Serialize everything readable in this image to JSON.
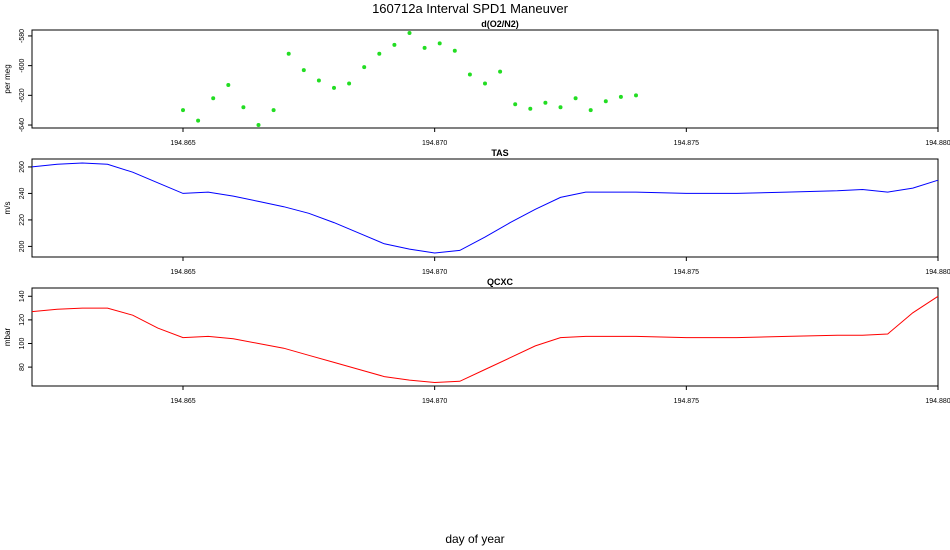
{
  "figure": {
    "title": "160712a   Interval SPD1 Maneuver",
    "xlabel": "day of year"
  },
  "chart_data": [
    {
      "type": "scatter",
      "title": "d(O2/N2)",
      "ylabel": "per meg",
      "xlim": [
        194.862,
        194.88
      ],
      "ylim": [
        -642,
        -576
      ],
      "xticks": [
        194.865,
        194.87,
        194.875,
        194.88
      ],
      "yticks": [
        -640,
        -620,
        -600,
        -580
      ],
      "color": "#22dd22",
      "x": [
        194.865,
        194.8653,
        194.8656,
        194.8659,
        194.8662,
        194.8665,
        194.8668,
        194.8671,
        194.8674,
        194.8677,
        194.868,
        194.8683,
        194.8686,
        194.8689,
        194.8692,
        194.8695,
        194.8698,
        194.8701,
        194.8704,
        194.8707,
        194.871,
        194.8713,
        194.8716,
        194.8719,
        194.8722,
        194.8725,
        194.8728,
        194.8731,
        194.8734,
        194.8737,
        194.874
      ],
      "y": [
        -630,
        -637,
        -622,
        -613,
        -628,
        -640,
        -630,
        -592,
        -603,
        -610,
        -615,
        -612,
        -601,
        -592,
        -586,
        -578,
        -588,
        -585,
        -590,
        -606,
        -612,
        -604,
        -626,
        -629,
        -625,
        -628,
        -622,
        -630,
        -624,
        -621,
        -620
      ]
    },
    {
      "type": "line",
      "title": "TAS",
      "ylabel": "m/s",
      "xlim": [
        194.862,
        194.88
      ],
      "ylim": [
        192,
        266
      ],
      "xticks": [
        194.865,
        194.87,
        194.875,
        194.88
      ],
      "yticks": [
        200,
        220,
        240,
        260
      ],
      "color": "#0000ff",
      "x": [
        194.862,
        194.8625,
        194.863,
        194.8635,
        194.864,
        194.8645,
        194.865,
        194.8655,
        194.866,
        194.8665,
        194.867,
        194.8675,
        194.868,
        194.8685,
        194.869,
        194.8695,
        194.87,
        194.8705,
        194.871,
        194.8715,
        194.872,
        194.8725,
        194.873,
        194.874,
        194.875,
        194.876,
        194.877,
        194.878,
        194.8785,
        194.879,
        194.8795,
        194.88
      ],
      "y": [
        260,
        262,
        263,
        262,
        256,
        248,
        240,
        241,
        238,
        234,
        230,
        225,
        218,
        210,
        202,
        198,
        195,
        197,
        207,
        218,
        228,
        237,
        241,
        241,
        240,
        240,
        241,
        242,
        243,
        241,
        244,
        250
      ]
    },
    {
      "type": "line",
      "title": "QCXC",
      "ylabel": "mbar",
      "xlim": [
        194.862,
        194.88
      ],
      "ylim": [
        64,
        147
      ],
      "xticks": [
        194.865,
        194.87,
        194.875,
        194.88
      ],
      "yticks": [
        80,
        100,
        120,
        140
      ],
      "color": "#ff0000",
      "x": [
        194.862,
        194.8625,
        194.863,
        194.8635,
        194.864,
        194.8645,
        194.865,
        194.8655,
        194.866,
        194.8665,
        194.867,
        194.8675,
        194.868,
        194.8685,
        194.869,
        194.8695,
        194.87,
        194.8705,
        194.871,
        194.8715,
        194.872,
        194.8725,
        194.873,
        194.874,
        194.875,
        194.876,
        194.877,
        194.878,
        194.8785,
        194.879,
        194.8795,
        194.88
      ],
      "y": [
        127,
        129,
        130,
        130,
        124,
        113,
        105,
        106,
        104,
        100,
        96,
        90,
        84,
        78,
        72,
        69,
        67,
        68,
        78,
        88,
        98,
        105,
        106,
        106,
        105,
        105,
        106,
        107,
        107,
        108,
        126,
        140
      ]
    }
  ]
}
